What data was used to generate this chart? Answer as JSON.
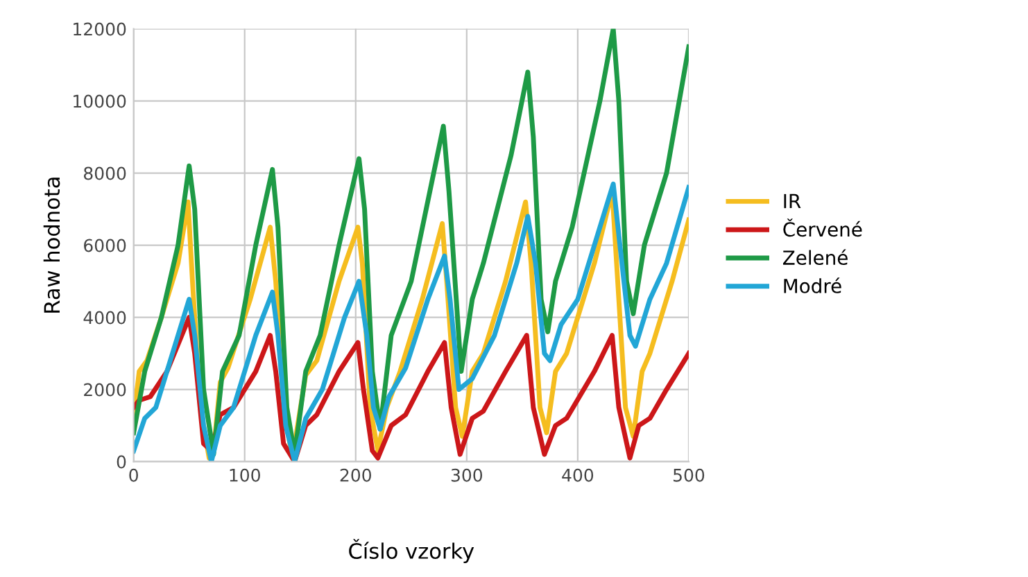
{
  "chart_data": {
    "type": "line",
    "xlabel": "Číslo vzorky",
    "ylabel": "Raw hodnota",
    "xlim": [
      0,
      500
    ],
    "ylim": [
      0,
      12000
    ],
    "xticks": [
      0,
      100,
      200,
      300,
      400,
      500
    ],
    "yticks": [
      0,
      2000,
      4000,
      6000,
      8000,
      10000,
      12000
    ],
    "grid": true,
    "legend": "right",
    "marker": "none",
    "line_style": "solid",
    "series": [
      {
        "name": "IR",
        "color": "#f5bd1f",
        "x": [
          0,
          5,
          12,
          25,
          40,
          49,
          53,
          60,
          68,
          72,
          78,
          85,
          105,
          123,
          128,
          135,
          143,
          155,
          165,
          185,
          202,
          206,
          213,
          220,
          228,
          240,
          260,
          278,
          282,
          290,
          296,
          305,
          315,
          335,
          353,
          358,
          366,
          372,
          380,
          390,
          415,
          431,
          436,
          443,
          450,
          458,
          465,
          485,
          500
        ],
        "values": [
          1200,
          2500,
          2800,
          4000,
          5500,
          7200,
          5000,
          1500,
          100,
          300,
          2200,
          2600,
          4500,
          6500,
          5000,
          1500,
          100,
          2400,
          2800,
          5000,
          6500,
          5500,
          1500,
          300,
          1500,
          2500,
          4500,
          6600,
          5000,
          1500,
          700,
          2500,
          3000,
          5000,
          7200,
          5500,
          1500,
          800,
          2500,
          3000,
          5500,
          7500,
          5000,
          1500,
          700,
          2500,
          3000,
          5000,
          6700
        ]
      },
      {
        "name": "Červené",
        "color": "#cc1719",
        "x": [
          0,
          5,
          15,
          30,
          50,
          55,
          63,
          70,
          78,
          90,
          110,
          123,
          128,
          135,
          145,
          155,
          165,
          185,
          202,
          207,
          215,
          220,
          232,
          245,
          265,
          280,
          286,
          294,
          305,
          315,
          335,
          354,
          360,
          370,
          380,
          390,
          415,
          431,
          437,
          447,
          455,
          465,
          480,
          500
        ],
        "values": [
          1500,
          1700,
          1800,
          2500,
          4000,
          3000,
          500,
          300,
          1300,
          1500,
          2500,
          3500,
          2500,
          500,
          0,
          1000,
          1300,
          2500,
          3300,
          2000,
          300,
          100,
          1000,
          1300,
          2500,
          3300,
          1500,
          200,
          1200,
          1400,
          2500,
          3500,
          1500,
          200,
          1000,
          1200,
          2500,
          3500,
          1500,
          100,
          1000,
          1200,
          2000,
          3000
        ]
      },
      {
        "name": "Zelené",
        "color": "#1e9a46",
        "x": [
          0,
          10,
          25,
          40,
          50,
          55,
          63,
          72,
          80,
          95,
          110,
          125,
          130,
          138,
          145,
          155,
          168,
          185,
          203,
          208,
          215,
          222,
          232,
          250,
          279,
          284,
          295,
          305,
          315,
          340,
          355,
          360,
          367,
          373,
          380,
          395,
          420,
          432,
          437,
          444,
          450,
          460,
          480,
          500
        ],
        "values": [
          800,
          2500,
          4000,
          6000,
          8200,
          7000,
          2000,
          200,
          2500,
          3500,
          6000,
          8100,
          6500,
          1500,
          200,
          2500,
          3500,
          6000,
          8400,
          7000,
          2500,
          900,
          3500,
          5000,
          9300,
          7500,
          2500,
          4500,
          5500,
          8500,
          10800,
          9000,
          4500,
          3600,
          5000,
          6500,
          10000,
          12000,
          10000,
          5000,
          4100,
          6000,
          8000,
          11500
        ]
      },
      {
        "name": "Modré",
        "color": "#22a6d6",
        "x": [
          0,
          10,
          20,
          35,
          50,
          55,
          63,
          70,
          78,
          90,
          110,
          125,
          130,
          137,
          145,
          155,
          170,
          190,
          203,
          210,
          216,
          222,
          230,
          245,
          265,
          280,
          285,
          293,
          305,
          325,
          345,
          355,
          362,
          370,
          375,
          385,
          400,
          420,
          432,
          438,
          447,
          452,
          465,
          480,
          500
        ],
        "values": [
          300,
          1200,
          1500,
          3000,
          4500,
          3500,
          1000,
          0,
          1000,
          1500,
          3500,
          4700,
          3500,
          1000,
          0,
          1200,
          2000,
          4000,
          5000,
          3500,
          1500,
          900,
          1800,
          2600,
          4500,
          5700,
          4500,
          2000,
          2300,
          3500,
          5500,
          6800,
          5500,
          3000,
          2800,
          3800,
          4500,
          6500,
          7700,
          6000,
          3500,
          3200,
          4500,
          5500,
          7600
        ]
      }
    ]
  }
}
